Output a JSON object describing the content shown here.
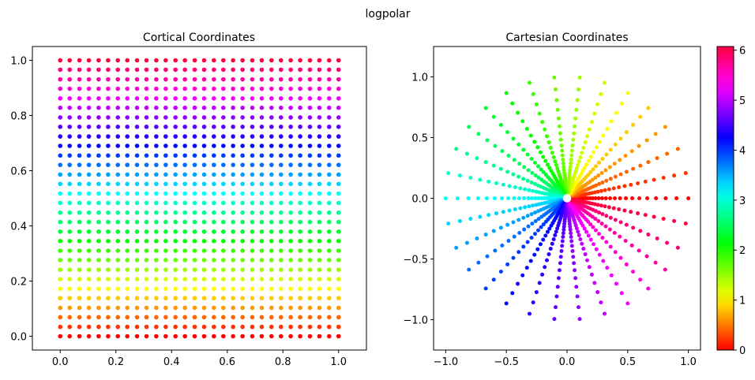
{
  "figure_title": "logpolar",
  "chart_data": [
    {
      "type": "scatter",
      "title": "Cortical Coordinates",
      "xlabel": "",
      "ylabel": "",
      "xlim": [
        -0.1,
        1.1
      ],
      "ylim": [
        -0.05,
        1.05
      ],
      "xticks": [
        "0.0",
        "0.2",
        "0.4",
        "0.6",
        "0.8",
        "1.0"
      ],
      "yticks": [
        "0.0",
        "0.2",
        "0.4",
        "0.6",
        "0.8",
        "1.0"
      ],
      "grid": false,
      "x_values": [
        0,
        0.034,
        0.069,
        0.103,
        0.138,
        0.172,
        0.207,
        0.241,
        0.276,
        0.31,
        0.345,
        0.379,
        0.414,
        0.448,
        0.483,
        0.517,
        0.552,
        0.586,
        0.621,
        0.655,
        0.69,
        0.724,
        0.759,
        0.793,
        0.828,
        0.862,
        0.897,
        0.931,
        0.966,
        1
      ],
      "y_values": [
        0,
        0.034,
        0.069,
        0.103,
        0.138,
        0.172,
        0.207,
        0.241,
        0.276,
        0.31,
        0.345,
        0.379,
        0.414,
        0.448,
        0.483,
        0.517,
        0.552,
        0.586,
        0.621,
        0.655,
        0.69,
        0.724,
        0.759,
        0.793,
        0.828,
        0.862,
        0.897,
        0.931,
        0.966,
        1
      ],
      "color_by": "theta (per row)"
    },
    {
      "type": "scatter",
      "title": "Cartesian Coordinates",
      "xlabel": "",
      "ylabel": "",
      "xlim": [
        -1.1,
        1.1
      ],
      "ylim": [
        -1.25,
        1.25
      ],
      "xticks": [
        "−1.0",
        "−0.5",
        "0.0",
        "0.5",
        "1.0"
      ],
      "yticks": [
        "−1.0",
        "−0.5",
        "0.0",
        "0.5",
        "1.0"
      ],
      "grid": false,
      "r_values": [
        0.05,
        0.055,
        0.061,
        0.068,
        0.075,
        0.083,
        0.092,
        0.103,
        0.114,
        0.126,
        0.14,
        0.155,
        0.172,
        0.191,
        0.212,
        0.235,
        0.26,
        0.289,
        0.32,
        0.355,
        0.394,
        0.437,
        0.485,
        0.537,
        0.596,
        0.661,
        0.733,
        0.813,
        0.902,
        1.0
      ],
      "theta_values": [
        0,
        0.209,
        0.419,
        0.628,
        0.838,
        1.047,
        1.257,
        1.466,
        1.676,
        1.885,
        2.094,
        2.304,
        2.513,
        2.723,
        2.932,
        3.142,
        3.351,
        3.561,
        3.77,
        3.979,
        4.189,
        4.398,
        4.608,
        4.817,
        5.027,
        5.236,
        5.445,
        5.655,
        5.864,
        6.074
      ],
      "color_by": "theta"
    }
  ],
  "colorbar": {
    "colormap": "hsv",
    "range": [
      0,
      6.074
    ],
    "ticks": [
      "0",
      "1",
      "2",
      "3",
      "4",
      "5",
      "6"
    ]
  }
}
